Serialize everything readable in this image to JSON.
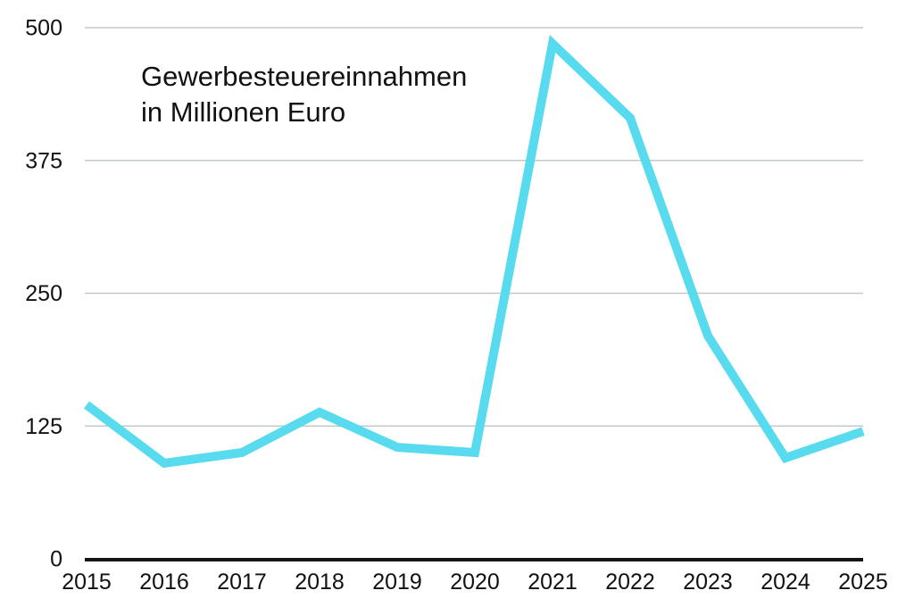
{
  "chart_data": {
    "type": "line",
    "title_line1": "Gewerbesteuereinnahmen",
    "title_line2": "in Millionen Euro",
    "title": "Gewerbesteuereinnahmen in Millionen Euro",
    "x": [
      2015,
      2016,
      2017,
      2018,
      2019,
      2020,
      2021,
      2022,
      2023,
      2024,
      2025
    ],
    "values": [
      145,
      90,
      100,
      138,
      105,
      100,
      485,
      415,
      210,
      95,
      120
    ],
    "series_name": "Gewerbesteuereinnahmen",
    "xlabel": "",
    "ylabel": "",
    "ylim": [
      0,
      500
    ],
    "yticks": [
      0,
      125,
      250,
      375,
      500
    ],
    "grid": true,
    "legend": "none",
    "line_color": "#58DBEE",
    "grid_color": "#c3c8ca",
    "axis_color": "#141414",
    "text_color": "#111111",
    "background_color": "#ffffff"
  }
}
